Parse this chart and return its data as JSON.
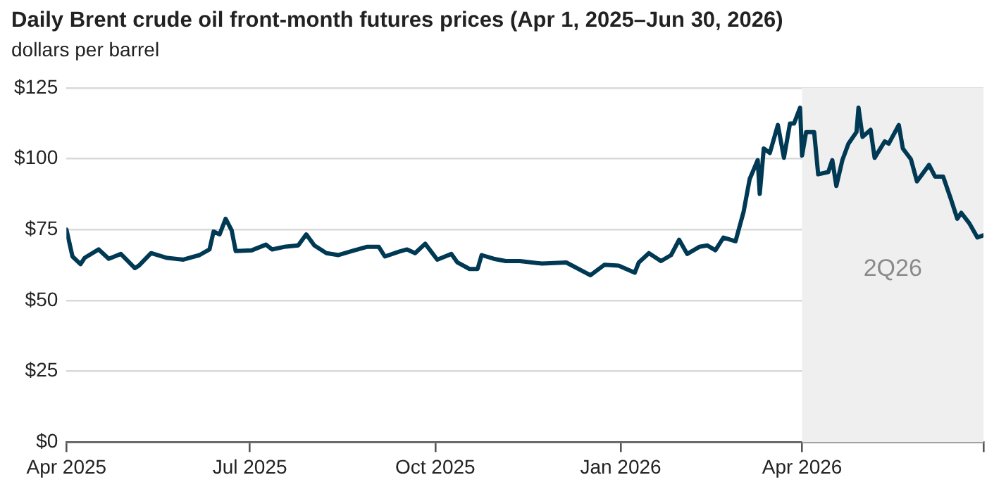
{
  "chart_data": {
    "type": "line",
    "title": "Daily Brent crude oil front-month futures prices (Apr 1, 2025–Jun 30, 2026)",
    "subtitle": "dollars per barrel",
    "x": [
      "2025-04-01",
      "2025-04-04",
      "2025-04-08",
      "2025-04-10",
      "2025-04-17",
      "2025-04-22",
      "2025-04-28",
      "2025-05-05",
      "2025-05-07",
      "2025-05-13",
      "2025-05-21",
      "2025-05-29",
      "2025-06-06",
      "2025-06-11",
      "2025-06-13",
      "2025-06-16",
      "2025-06-19",
      "2025-06-22",
      "2025-06-24",
      "2025-07-02",
      "2025-07-09",
      "2025-07-12",
      "2025-07-18",
      "2025-07-25",
      "2025-07-29",
      "2025-08-02",
      "2025-08-08",
      "2025-08-14",
      "2025-08-22",
      "2025-08-28",
      "2025-09-03",
      "2025-09-06",
      "2025-09-13",
      "2025-09-17",
      "2025-09-21",
      "2025-09-26",
      "2025-10-02",
      "2025-10-09",
      "2025-10-12",
      "2025-10-18",
      "2025-10-22",
      "2025-10-24",
      "2025-10-30",
      "2025-11-05",
      "2025-11-12",
      "2025-11-23",
      "2025-12-05",
      "2025-12-17",
      "2025-12-24",
      "2025-12-31",
      "2026-01-08",
      "2026-01-10",
      "2026-01-15",
      "2026-01-21",
      "2026-01-26",
      "2026-01-30",
      "2026-02-03",
      "2026-02-09",
      "2026-02-13",
      "2026-02-17",
      "2026-02-21",
      "2026-02-27",
      "2026-03-03",
      "2026-03-06",
      "2026-03-10",
      "2026-03-11",
      "2026-03-13",
      "2026-03-16",
      "2026-03-20",
      "2026-03-23",
      "2026-03-26",
      "2026-03-28",
      "2026-03-31",
      "2026-04-01",
      "2026-04-03",
      "2026-04-07",
      "2026-04-09",
      "2026-04-14",
      "2026-04-16",
      "2026-04-18",
      "2026-04-21",
      "2026-04-24",
      "2026-04-28",
      "2026-04-29",
      "2026-05-01",
      "2026-05-05",
      "2026-05-07",
      "2026-05-12",
      "2026-05-14",
      "2026-05-19",
      "2026-05-21",
      "2026-05-25",
      "2026-05-28",
      "2026-06-03",
      "2026-06-06",
      "2026-06-10",
      "2026-06-14",
      "2026-06-17",
      "2026-06-19",
      "2026-06-23",
      "2026-06-27",
      "2026-06-30"
    ],
    "series": [
      {
        "color": "#003953",
        "values": [
          75,
          65.5,
          62.8,
          65,
          68,
          64.7,
          66.4,
          61.4,
          62.3,
          66.7,
          65,
          64.4,
          66,
          68,
          74.3,
          73.3,
          78.8,
          74.7,
          67.4,
          67.7,
          69.7,
          68,
          68.9,
          69.4,
          73.3,
          69.4,
          66.7,
          66,
          67.7,
          68.9,
          68.9,
          65.5,
          67.2,
          68,
          66.7,
          70,
          64.4,
          66.4,
          63.4,
          61.1,
          61.1,
          66,
          64.7,
          63.9,
          63.9,
          63,
          63.4,
          58.9,
          62.6,
          62.3,
          59.8,
          63.4,
          66.7,
          63.9,
          66,
          71.4,
          66.4,
          68.9,
          69.4,
          67.7,
          72.2,
          70.9,
          81.3,
          92.8,
          99.5,
          87.6,
          103.6,
          102,
          111.9,
          100.3,
          112.4,
          112.4,
          118,
          101.1,
          109.4,
          109.4,
          94.5,
          95.3,
          99.5,
          90.4,
          99.5,
          105.3,
          109.4,
          118,
          107.7,
          110.2,
          100.3,
          106.1,
          105.3,
          111.9,
          103.6,
          99.8,
          92,
          97.8,
          93.7,
          93.7,
          85.4,
          78.8,
          80.9,
          77.2,
          72.2,
          73
        ]
      }
    ],
    "xlim": [
      "2025-04-01",
      "2026-06-30"
    ],
    "xticks": [
      {
        "value": "2025-04-01",
        "label": "Apr 2025"
      },
      {
        "value": "2025-07-01",
        "label": "Jul 2025"
      },
      {
        "value": "2025-10-01",
        "label": "Oct 2025"
      },
      {
        "value": "2026-01-01",
        "label": "Jan 2026"
      },
      {
        "value": "2026-04-01",
        "label": "Apr 2026"
      },
      {
        "value": "2026-06-30",
        "label": null
      }
    ],
    "ylim": [
      0,
      125
    ],
    "yticks": [
      {
        "value": 0,
        "label": "$0"
      },
      {
        "value": 25,
        "label": "$25"
      },
      {
        "value": 50,
        "label": "$50"
      },
      {
        "value": 75,
        "label": "$75"
      },
      {
        "value": 100,
        "label": "$100"
      },
      {
        "value": 125,
        "label": "$125"
      }
    ],
    "grid": "y",
    "marker": "none",
    "line_style": "solid",
    "bands": [
      {
        "axis": "x",
        "from": "2026-04-01",
        "to": "2026-06-30",
        "label": "2Q26",
        "color": "#efefef"
      }
    ]
  }
}
